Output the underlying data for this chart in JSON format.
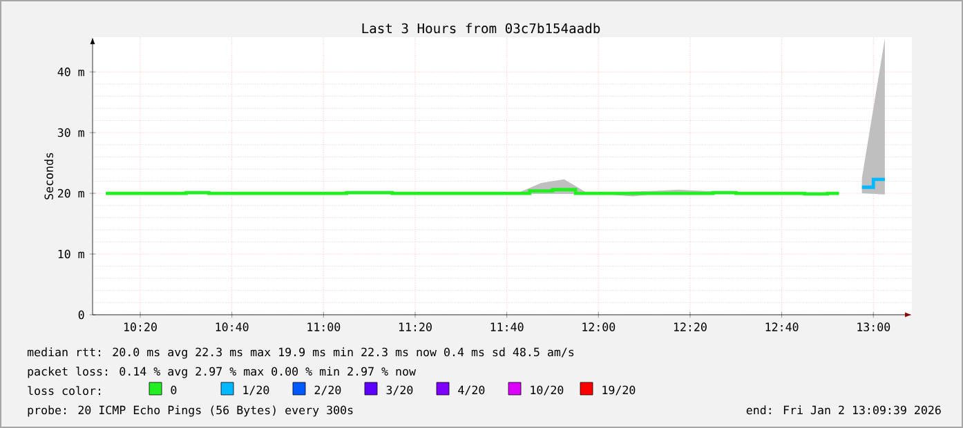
{
  "chart_data": {
    "type": "step",
    "title": "Last 3 Hours from 03c7b154aadb",
    "ylabel": "Seconds",
    "xlim": [
      10.16,
      13.14
    ],
    "ylim": [
      0,
      45.7
    ],
    "xticks": [
      {
        "value": 10.3333,
        "label": "10:20"
      },
      {
        "value": 10.6667,
        "label": "10:40"
      },
      {
        "value": 11.0,
        "label": "11:00"
      },
      {
        "value": 11.3333,
        "label": "11:20"
      },
      {
        "value": 11.6667,
        "label": "11:40"
      },
      {
        "value": 12.0,
        "label": "12:00"
      },
      {
        "value": 12.3333,
        "label": "12:20"
      },
      {
        "value": 12.6667,
        "label": "12:40"
      },
      {
        "value": 13.0,
        "label": "13:00"
      }
    ],
    "yticks": [
      0,
      {
        "value": 10,
        "label": "10 m"
      },
      {
        "value": 20,
        "label": "20 m"
      },
      {
        "value": 30,
        "label": "30 m"
      },
      {
        "value": 40,
        "label": "40 m"
      }
    ],
    "grid": true,
    "legend": "bottom",
    "legend_title": "loss color:",
    "series": [
      {
        "name": "0",
        "color": "#22ee22",
        "x": [
          10.2083,
          10.2917,
          10.375,
          10.4583,
          10.5417,
          10.625,
          10.7083,
          10.7917,
          10.875,
          10.9583,
          11.0417,
          11.125,
          11.2083,
          11.2917,
          11.375,
          11.4583,
          11.5417,
          11.625,
          11.7083,
          11.7917,
          11.875,
          11.9583,
          12.0417,
          12.125,
          12.2083,
          12.2917,
          12.375,
          12.4583,
          12.5417,
          12.625,
          12.7083,
          12.7917,
          12.875
        ],
        "values": [
          20.0,
          20.0,
          20.0,
          20.0,
          20.1,
          20.0,
          20.0,
          20.0,
          20.0,
          20.0,
          20.0,
          20.1,
          20.1,
          20.0,
          20.0,
          20.0,
          20.0,
          20.0,
          20.0,
          20.4,
          20.6,
          20.0,
          20.0,
          20.0,
          20.0,
          20.0,
          20.0,
          20.1,
          20.0,
          20.0,
          20.0,
          19.9,
          20.0
        ],
        "lower": [
          19.9,
          19.9,
          19.9,
          19.9,
          20.0,
          19.9,
          19.9,
          19.9,
          19.9,
          19.9,
          19.9,
          20.0,
          20.0,
          19.9,
          19.9,
          19.9,
          19.9,
          19.9,
          19.9,
          19.9,
          19.9,
          19.9,
          19.8,
          19.5,
          19.9,
          19.9,
          19.9,
          19.9,
          19.9,
          19.9,
          19.9,
          19.8,
          19.9
        ],
        "upper": [
          20.1,
          20.1,
          20.1,
          20.1,
          20.2,
          20.1,
          20.1,
          20.1,
          20.1,
          20.1,
          20.1,
          20.2,
          20.2,
          20.1,
          20.1,
          20.1,
          20.1,
          20.1,
          20.1,
          21.7,
          22.3,
          20.1,
          20.1,
          20.3,
          20.4,
          20.6,
          20.4,
          20.2,
          20.1,
          20.1,
          20.1,
          20.0,
          20.1
        ]
      },
      {
        "name": "1/20",
        "color": "#00b8ff",
        "x": [
          12.9583,
          13.0417
        ],
        "values": [
          21.0,
          22.3
        ],
        "lower": [
          20.0,
          19.8
        ],
        "upper": [
          22.5,
          45.5
        ]
      },
      {
        "name": "2/20",
        "color": "#0059ff"
      },
      {
        "name": "3/20",
        "color": "#5e00ff"
      },
      {
        "name": "4/20",
        "color": "#7e00ff"
      },
      {
        "name": "10/20",
        "color": "#dd00ff"
      },
      {
        "name": "19/20",
        "color": "#ff0000"
      }
    ],
    "annotations": [
      "median rtt:  20.0 ms avg  22.3 ms max  19.9 ms min  22.3 ms now  0.4 ms sd  48.5   am/s",
      "packet loss: 0.14 % avg  2.97 % max  0.00 % min  2.97 % now",
      "probe:       20 ICMP Echo Pings (56 Bytes) every 300s",
      "end: Fri Jan  2 13:09:39 2026"
    ]
  }
}
